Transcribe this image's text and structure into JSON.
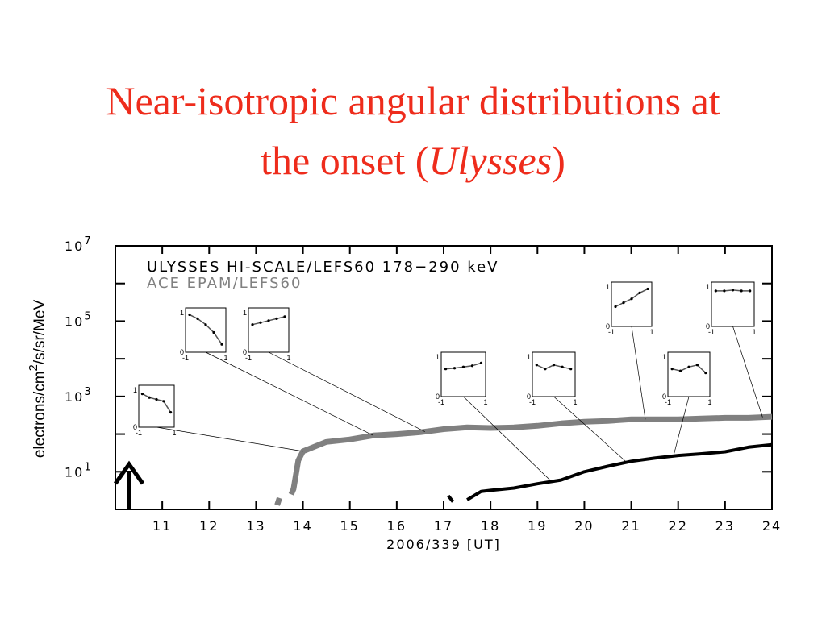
{
  "chart_data": {
    "type": "line",
    "title": {
      "line1": "Near-isotropic angular distributions at",
      "line2": "the onset (",
      "italic": "Ulysses",
      "end": ")"
    },
    "xlabel": "2006/339 [UT]",
    "ylabel": {
      "text": "electrons/cm",
      "sup": "2",
      "rest": "/s/sr/MeV"
    },
    "ylog": true,
    "xlim": [
      10,
      24
    ],
    "xticks": [
      11,
      12,
      13,
      14,
      15,
      16,
      17,
      18,
      19,
      20,
      21,
      22,
      23,
      24
    ],
    "ylim": [
      1,
      10000000
    ],
    "yticks": [
      {
        "value": 10,
        "label": "10",
        "exponent": "1"
      },
      {
        "value": 1000,
        "label": "10",
        "exponent": "3"
      },
      {
        "value": 100000,
        "label": "10",
        "exponent": "5"
      },
      {
        "value": 10000000,
        "label": "10",
        "exponent": "7"
      }
    ],
    "yminorticks": [
      100,
      10000,
      1000000
    ],
    "series": [
      {
        "name": "ULYSSES HI-SCALE/LEFS60 178−290 keV",
        "color": "#000000",
        "x": [
          17.1,
          17.2,
          17.4,
          17.5,
          17.8,
          18,
          18.5,
          19,
          19.5,
          20,
          20.5,
          21,
          21.5,
          22,
          22.5,
          23,
          23.5,
          24
        ],
        "values": [
          2.3,
          1.6,
          null,
          1.8,
          3,
          3.2,
          3.7,
          4.8,
          6,
          10,
          14,
          19,
          23,
          27,
          30,
          34,
          45,
          52
        ]
      },
      {
        "name": "ACE EPAM/LEFS60",
        "color": "#808080",
        "x": [
          13.45,
          13.5,
          13.6,
          13.75,
          13.8,
          13.9,
          14,
          14.5,
          15,
          15.5,
          16,
          16.5,
          17,
          17.5,
          18,
          18.5,
          19,
          19.5,
          20,
          20.5,
          21,
          21.5,
          22,
          22.5,
          23,
          23.5,
          24
        ],
        "values": [
          1.3,
          2,
          null,
          2.5,
          3.5,
          20,
          35,
          62,
          72,
          92,
          100,
          112,
          135,
          150,
          145,
          150,
          166,
          192,
          212,
          224,
          246,
          246,
          246,
          258,
          270,
          270,
          288
        ]
      }
    ],
    "insets": {
      "xticks": [
        -1,
        1
      ],
      "yticks": [
        0,
        1
      ],
      "mu": [
        -0.8,
        -0.4,
        0,
        0.4,
        0.8
      ],
      "plots": [
        {
          "time": 14.0,
          "series": 1,
          "values": [
            0.9,
            0.8,
            0.75,
            0.7,
            0.4
          ]
        },
        {
          "time": 15.5,
          "series": 1,
          "values": [
            0.95,
            0.85,
            0.7,
            0.5,
            0.2
          ]
        },
        {
          "time": 16.6,
          "series": 1,
          "values": [
            0.7,
            0.75,
            0.8,
            0.85,
            0.9
          ]
        },
        {
          "time": 19.3,
          "series": 0,
          "values": [
            0.7,
            0.72,
            0.75,
            0.78,
            0.85
          ]
        },
        {
          "time": 20.9,
          "series": 0,
          "values": [
            0.8,
            0.7,
            0.8,
            0.75,
            0.7
          ]
        },
        {
          "time": 21.3,
          "series": 1,
          "values": [
            0.5,
            0.6,
            0.7,
            0.85,
            0.95
          ]
        },
        {
          "time": 21.9,
          "series": 0,
          "values": [
            0.7,
            0.65,
            0.75,
            0.8,
            0.6
          ]
        },
        {
          "time": 23.8,
          "series": 1,
          "values": [
            0.9,
            0.9,
            0.92,
            0.9,
            0.9
          ]
        }
      ]
    }
  }
}
